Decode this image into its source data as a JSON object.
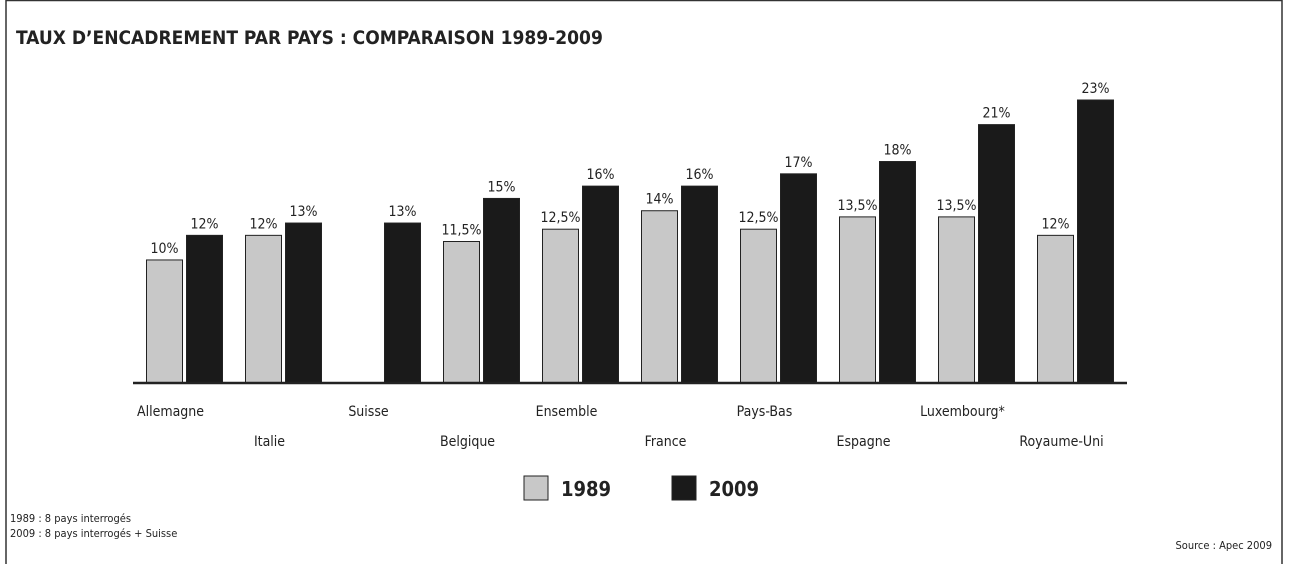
{
  "chart_data": {
    "type": "bar",
    "title": "TAUX D’ENCADREMENT PAR PAYS : COMPARAISON 1989-2009",
    "categories": [
      "Allemagne",
      "Italie",
      "Suisse",
      "Belgique",
      "Ensemble",
      "France",
      "Pays-Bas",
      "Espagne",
      "Luxembourg*",
      "Royaume-Uni"
    ],
    "series": [
      {
        "name": "1989",
        "color": "#c8c8c8",
        "values": [
          10,
          12,
          null,
          11.5,
          12.5,
          14,
          12.5,
          13.5,
          13.5,
          12
        ],
        "value_labels": [
          "10%",
          "12%",
          null,
          "11,5%",
          "12,5%",
          "14%",
          "12,5%",
          "13,5%",
          "13,5%",
          "12%"
        ]
      },
      {
        "name": "2009",
        "color": "#1a1a1a",
        "values": [
          12,
          13,
          13,
          15,
          16,
          16,
          17,
          18,
          21,
          23
        ],
        "value_labels": [
          "12%",
          "13%",
          "13%",
          "15%",
          "16%",
          "16%",
          "17%",
          "18%",
          "21%",
          "23%"
        ]
      }
    ],
    "notes": [
      "1989 : 8 pays interrogés",
      "2009 : 8 pays interrogés + Suisse"
    ],
    "source": "Source : Apec 2009"
  }
}
